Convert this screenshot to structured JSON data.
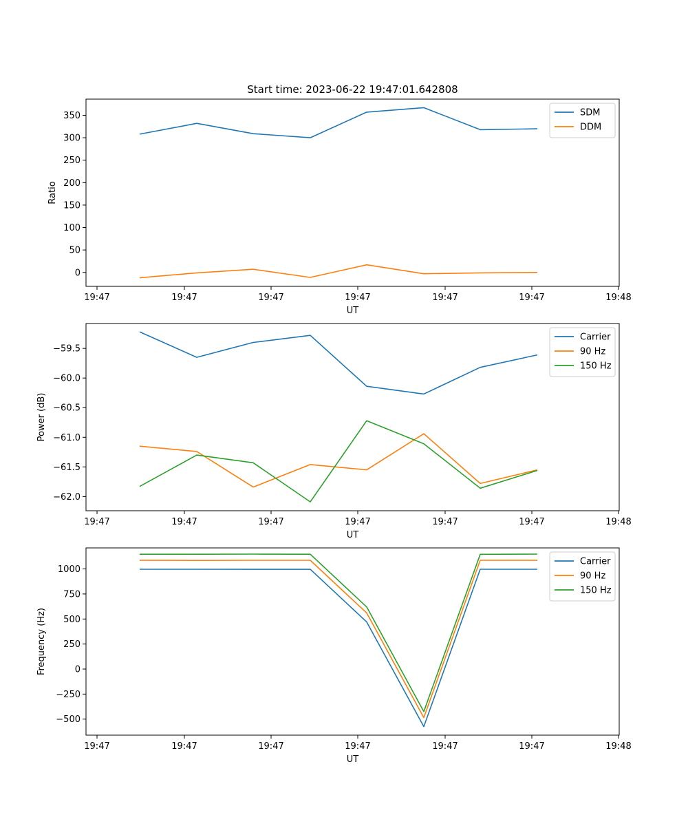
{
  "chart_data": [
    {
      "type": "line",
      "title": "Start time: 2023-06-22 19:47:01.642808",
      "xlabel": "UT",
      "ylabel": "Ratio",
      "x_tick_labels": [
        "19:47",
        "19:47",
        "19:47",
        "19:47",
        "19:47",
        "19:47",
        "19:48"
      ],
      "y_ticks": [
        0,
        50,
        100,
        150,
        200,
        250,
        300,
        350
      ],
      "y_tick_labels": [
        "0",
        "50",
        "100",
        "150",
        "200",
        "250",
        "300",
        "350"
      ],
      "ylim": [
        -31,
        386
      ],
      "legend_position": "top-right",
      "series": [
        {
          "name": "SDM",
          "color": "#1f77b4",
          "values": [
            308,
            332,
            309,
            300,
            357,
            367,
            318,
            320
          ]
        },
        {
          "name": "DDM",
          "color": "#ff7f0e",
          "values": [
            -12,
            -1,
            7,
            -11,
            17,
            -3,
            -1,
            0
          ]
        }
      ]
    },
    {
      "type": "line",
      "title": "",
      "xlabel": "UT",
      "ylabel": "Power (dB)",
      "x_tick_labels": [
        "19:47",
        "19:47",
        "19:47",
        "19:47",
        "19:47",
        "19:47",
        "19:48"
      ],
      "y_ticks": [
        -59.5,
        -60.0,
        -60.5,
        -61.0,
        -61.5,
        -62.0
      ],
      "y_tick_labels": [
        "−59.5",
        "−60.0",
        "−60.5",
        "−61.0",
        "−61.5",
        "−62.0"
      ],
      "ylim": [
        -62.24,
        -59.08
      ],
      "legend_position": "top-right",
      "series": [
        {
          "name": "Carrier",
          "color": "#1f77b4",
          "values": [
            -59.22,
            -59.65,
            -59.4,
            -59.28,
            -60.14,
            -60.27,
            -59.82,
            -59.61
          ]
        },
        {
          "name": "90 Hz",
          "color": "#ff7f0e",
          "values": [
            -61.15,
            -61.24,
            -61.84,
            -61.46,
            -61.55,
            -60.94,
            -61.78,
            -61.55
          ]
        },
        {
          "name": "150 Hz",
          "color": "#2ca02c",
          "values": [
            -61.83,
            -61.3,
            -61.43,
            -62.09,
            -60.72,
            -61.11,
            -61.86,
            -61.56
          ]
        }
      ]
    },
    {
      "type": "line",
      "title": "",
      "xlabel": "UT",
      "ylabel": "Frequency (Hz)",
      "x_tick_labels": [
        "19:47",
        "19:47",
        "19:47",
        "19:47",
        "19:47",
        "19:47",
        "19:48"
      ],
      "y_ticks": [
        -500,
        -250,
        0,
        250,
        500,
        750,
        1000
      ],
      "y_tick_labels": [
        "−500",
        "−250",
        "0",
        "250",
        "500",
        "750",
        "1000"
      ],
      "ylim": [
        -660,
        1210
      ],
      "legend_position": "top-right",
      "series": [
        {
          "name": "Carrier",
          "color": "#1f77b4",
          "values": [
            997,
            997,
            996,
            996,
            470,
            -575,
            997,
            997
          ]
        },
        {
          "name": "90 Hz",
          "color": "#ff7f0e",
          "values": [
            1087,
            1085,
            1086,
            1086,
            560,
            -485,
            1087,
            1087
          ]
        },
        {
          "name": "150 Hz",
          "color": "#2ca02c",
          "values": [
            1147,
            1147,
            1148,
            1147,
            620,
            -425,
            1146,
            1148
          ]
        }
      ]
    }
  ]
}
